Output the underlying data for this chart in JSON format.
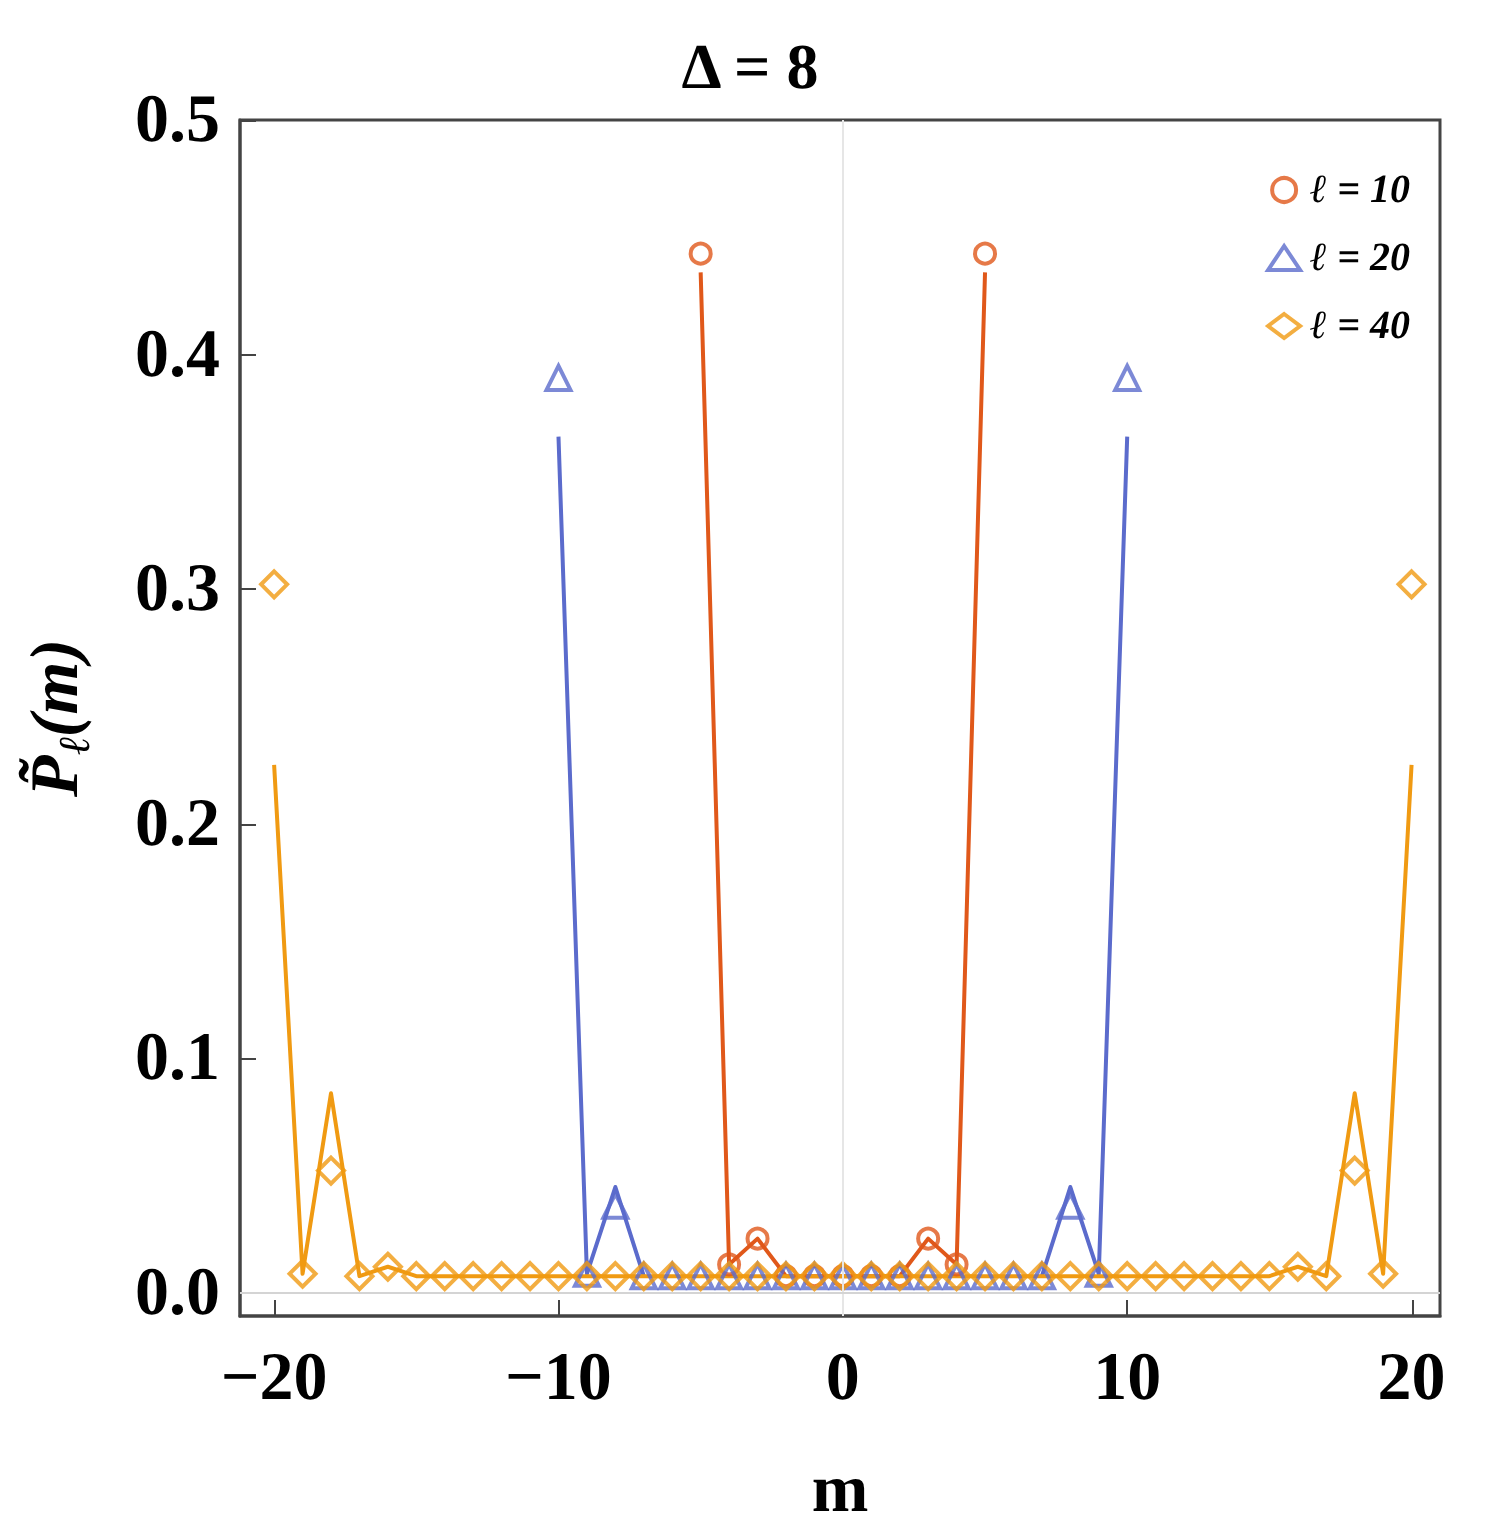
{
  "chart_data": {
    "type": "scatter",
    "title": "Δ = 8",
    "xlabel": "m",
    "ylabel": "P̃$_{ℓ}$(m)",
    "xlim": [
      -21.2,
      21
    ],
    "ylim": [
      -0.01,
      0.5
    ],
    "xticks": [
      {
        "value": -20,
        "label": "−20"
      },
      {
        "value": -10,
        "label": "−10"
      },
      0,
      10,
      20
    ],
    "yticks": [
      {
        "value": 0,
        "label": "0.0"
      },
      0.1,
      0.2,
      0.3,
      0.4,
      0.5
    ],
    "legend": "top right",
    "grid": false,
    "ref_lines": [
      {
        "axis": "x",
        "value": 0,
        "color": "#e6e6e6"
      },
      {
        "axis": "y",
        "value": 0,
        "color": "#d4d4d4"
      }
    ],
    "series": [
      {
        "type": "line",
        "marker": "none",
        "color": "#e0581a",
        "x": [
          -5,
          -4,
          -3,
          -2,
          -1,
          0,
          1,
          2,
          3,
          4,
          5
        ],
        "values": [
          0.435,
          0.012,
          0.023,
          0.007,
          0.007,
          0.007,
          0.007,
          0.007,
          0.023,
          0.012,
          0.435
        ]
      },
      {
        "type": "line",
        "marker": "none",
        "color": "#5b6bcc",
        "x": [
          -10,
          -9,
          -8,
          -7,
          -6,
          -5,
          -4,
          -3,
          -2,
          -1,
          0,
          1,
          2,
          3,
          4,
          5,
          6,
          7,
          8,
          9,
          10
        ],
        "values": [
          0.365,
          0.008,
          0.045,
          0.007,
          null,
          null,
          null,
          null,
          null,
          null,
          null,
          null,
          null,
          null,
          null,
          null,
          null,
          0.007,
          0.045,
          0.008,
          0.365
        ]
      },
      {
        "type": "line",
        "marker": "none",
        "color": "#f09a12",
        "x": [
          -20,
          -19,
          -18,
          -17,
          -16,
          -15,
          -14,
          -13,
          -12,
          -11,
          -10,
          -9,
          -8,
          -7,
          -6,
          -5,
          -4,
          -3,
          -2,
          -1,
          0,
          1,
          2,
          3,
          4,
          5,
          6,
          7,
          8,
          9,
          10,
          11,
          12,
          13,
          14,
          15,
          16,
          17,
          18,
          19,
          20
        ],
        "values": [
          0.225,
          0.008,
          0.085,
          0.007,
          0.011,
          0.007,
          0.007,
          0.007,
          0.007,
          0.007,
          0.007,
          0.007,
          0.007,
          0.007,
          0.007,
          0.007,
          0.007,
          0.007,
          0.007,
          0.007,
          0.007,
          0.007,
          0.007,
          0.007,
          0.007,
          0.007,
          0.007,
          0.007,
          0.007,
          0.007,
          0.007,
          0.007,
          0.007,
          0.007,
          0.007,
          0.007,
          0.011,
          0.007,
          0.085,
          0.008,
          0.225
        ]
      },
      {
        "name": "ℓ = 10",
        "marker": "circle",
        "color": "#e0581a",
        "x": [
          -5,
          -4,
          -3,
          -2,
          -1,
          0,
          1,
          2,
          3,
          4,
          5
        ],
        "values": [
          0.443,
          0.012,
          0.023,
          0.007,
          0.007,
          0.007,
          0.007,
          0.007,
          0.023,
          0.012,
          0.443
        ]
      },
      {
        "name": "ℓ = 20",
        "marker": "triangle",
        "color": "#5b6bcc",
        "x": [
          -10,
          -9,
          -8,
          -7,
          -6,
          -5,
          -4,
          -3,
          -2,
          -1,
          0,
          1,
          2,
          3,
          4,
          5,
          6,
          7,
          8,
          9,
          10
        ],
        "values": [
          0.39,
          0.008,
          0.037,
          0.007,
          0.007,
          0.007,
          0.007,
          0.007,
          0.007,
          0.007,
          0.007,
          0.007,
          0.007,
          0.007,
          0.007,
          0.007,
          0.007,
          0.007,
          0.037,
          0.008,
          0.39
        ]
      },
      {
        "name": "ℓ = 40",
        "marker": "diamond",
        "color": "#f09a12",
        "x": [
          -20,
          -19,
          -18,
          -17,
          -16,
          -15,
          -14,
          -13,
          -12,
          -11,
          -10,
          -9,
          -8,
          -7,
          -6,
          -5,
          -4,
          -3,
          -2,
          -1,
          0,
          1,
          2,
          3,
          4,
          5,
          6,
          7,
          8,
          9,
          10,
          11,
          12,
          13,
          14,
          15,
          16,
          17,
          18,
          19,
          20
        ],
        "values": [
          0.302,
          0.008,
          0.052,
          0.007,
          0.011,
          0.007,
          0.007,
          0.007,
          0.007,
          0.007,
          0.007,
          0.007,
          0.007,
          0.007,
          0.007,
          0.007,
          0.007,
          0.007,
          0.007,
          0.007,
          0.007,
          0.007,
          0.007,
          0.007,
          0.007,
          0.007,
          0.007,
          0.007,
          0.007,
          0.007,
          0.007,
          0.007,
          0.007,
          0.007,
          0.007,
          0.007,
          0.011,
          0.007,
          0.052,
          0.008,
          0.302
        ]
      }
    ]
  }
}
